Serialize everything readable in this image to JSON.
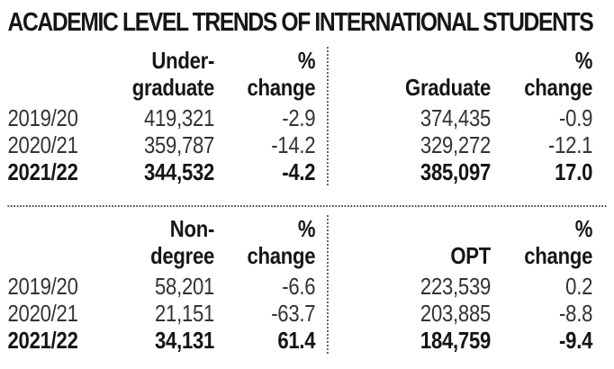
{
  "title": "ACADEMIC LEVEL TRENDS OF INTERNATIONAL STUDENTS",
  "colors": {
    "background": "#ffffff",
    "title_text": "#161616",
    "data_text": "#333333",
    "bold_text": "#141414",
    "divider_dots": "#4d4d4d"
  },
  "pct_header": {
    "line1": "%",
    "line2": "change"
  },
  "years": [
    "2019/20",
    "2020/21",
    "2021/22"
  ],
  "quadrants": {
    "undergraduate": {
      "header_line1": "Under-",
      "header_line2": "graduate",
      "rows": [
        {
          "value": "419,321",
          "pct": "-2.9"
        },
        {
          "value": "359,787",
          "pct": "-14.2"
        },
        {
          "value": "344,532",
          "pct": "-4.2"
        }
      ]
    },
    "graduate": {
      "header_line1": "",
      "header_line2": "Graduate",
      "rows": [
        {
          "value": "374,435",
          "pct": "-0.9"
        },
        {
          "value": "329,272",
          "pct": "-12.1"
        },
        {
          "value": "385,097",
          "pct": "17.0"
        }
      ]
    },
    "nondegree": {
      "header_line1": "Non-",
      "header_line2": "degree",
      "rows": [
        {
          "value": "58,201",
          "pct": "-6.6"
        },
        {
          "value": "21,151",
          "pct": "-63.7"
        },
        {
          "value": "34,131",
          "pct": "61.4"
        }
      ]
    },
    "opt": {
      "header_line1": "",
      "header_line2": "OPT",
      "rows": [
        {
          "value": "223,539",
          "pct": "0.2"
        },
        {
          "value": "203,885",
          "pct": "-8.8"
        },
        {
          "value": "184,759",
          "pct": "-9.4"
        }
      ]
    }
  },
  "chart_data": {
    "type": "table",
    "title": "ACADEMIC LEVEL TRENDS OF INTERNATIONAL STUDENTS",
    "row_labels": [
      "2019/20",
      "2020/21",
      "2021/22"
    ],
    "series": [
      {
        "name": "Undergraduate",
        "values": [
          419321,
          359787,
          344532
        ],
        "pct_change": [
          -2.9,
          -14.2,
          -4.2
        ]
      },
      {
        "name": "Graduate",
        "values": [
          374435,
          329272,
          385097
        ],
        "pct_change": [
          -0.9,
          -12.1,
          17.0
        ]
      },
      {
        "name": "Non-degree",
        "values": [
          58201,
          21151,
          34131
        ],
        "pct_change": [
          -6.6,
          -63.7,
          61.4
        ]
      },
      {
        "name": "OPT",
        "values": [
          223539,
          203885,
          184759
        ],
        "pct_change": [
          0.2,
          -8.8,
          -9.4
        ]
      }
    ],
    "notes": "Bold final row (2021/22) in each quadrant; dotted cross dividers separate the four quadrants"
  }
}
